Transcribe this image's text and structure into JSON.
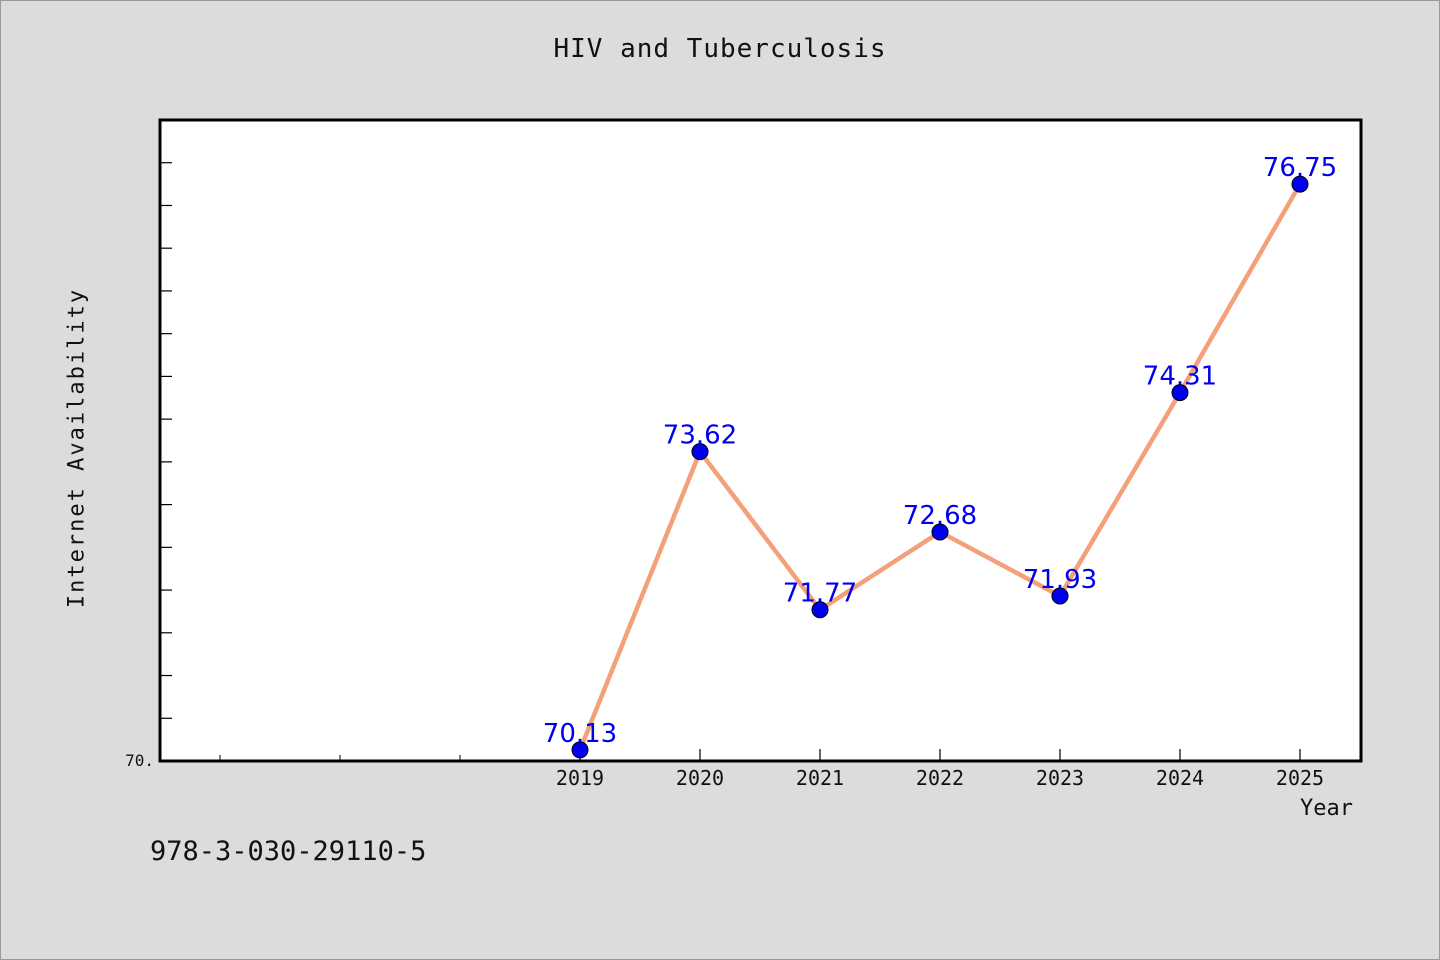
{
  "chart_data": {
    "type": "line",
    "title": "HIV and Tuberculosis",
    "xlabel": "Year",
    "ylabel": "Internet Availability",
    "x": [
      "2019",
      "2020",
      "2021",
      "2022",
      "2023",
      "2024",
      "2025"
    ],
    "series": [
      {
        "values": [
          70.13,
          73.62,
          71.77,
          72.68,
          71.93,
          74.31,
          76.75
        ]
      }
    ],
    "data_labels": [
      "70.13",
      "73.62",
      "71.77",
      "72.68",
      "71.93",
      "74.31",
      "76.75"
    ],
    "ylim": [
      70,
      77.5
    ],
    "y_tick_labels": [
      "70."
    ],
    "line_color": "#f4a07a",
    "marker_color": "#0000ee",
    "label_color": "#0000ee",
    "grid": false
  },
  "footer": {
    "isbn": "978-3-030-29110-5"
  }
}
